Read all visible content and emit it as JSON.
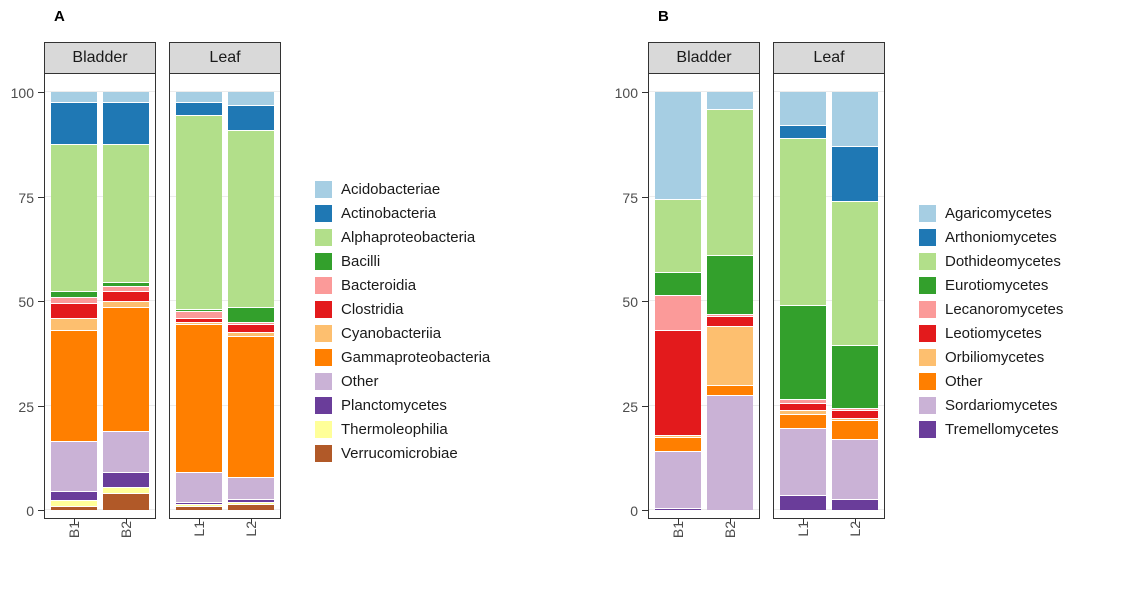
{
  "figure": {
    "background": "#FFFFFF"
  },
  "chart_data": [
    {
      "type": "bar",
      "stacked": true,
      "panel_label": "A",
      "facets": [
        "Bladder",
        "Leaf"
      ],
      "categories": [
        "B1",
        "B2",
        "L1",
        "L2"
      ],
      "category_facets": [
        "Bladder",
        "Bladder",
        "Leaf",
        "Leaf"
      ],
      "ylim": [
        0,
        100
      ],
      "yticks": [
        0,
        25,
        50,
        75,
        100
      ],
      "xlabel": "",
      "ylabel": "",
      "legend_position": "right",
      "strip_fill": "#D9D9D9",
      "grid": false,
      "series": [
        {
          "name": "Acidobacteriae",
          "color": "#A6CEE3",
          "values": [
            2.5,
            2.5,
            2.5,
            3
          ]
        },
        {
          "name": "Actinobacteria",
          "color": "#1F78B4",
          "values": [
            10,
            10,
            3,
            6
          ]
        },
        {
          "name": "Alphaproteobacteria",
          "color": "#B2DF8A",
          "values": [
            35,
            33,
            46.5,
            42.5
          ]
        },
        {
          "name": "Bacilli",
          "color": "#33A02C",
          "values": [
            1.5,
            1,
            0.5,
            3.5
          ]
        },
        {
          "name": "Bacteroidia",
          "color": "#FB9A99",
          "values": [
            1.5,
            1,
            1.5,
            0.5
          ]
        },
        {
          "name": "Clostridia",
          "color": "#E31A1C",
          "values": [
            3.5,
            2.5,
            1,
            2
          ]
        },
        {
          "name": "Cyanobacteriia",
          "color": "#FDBF6F",
          "values": [
            3,
            1.5,
            0.5,
            1
          ]
        },
        {
          "name": "Gammaproteobacteria",
          "color": "#FF7F00",
          "values": [
            26.5,
            29.5,
            35.5,
            33.5
          ]
        },
        {
          "name": "Other",
          "color": "#CAB2D6",
          "values": [
            12,
            10,
            7,
            5.5
          ]
        },
        {
          "name": "Planctomycetes",
          "color": "#6A3D9A",
          "values": [
            2,
            3.5,
            0.5,
            0.5
          ]
        },
        {
          "name": "Thermoleophilia",
          "color": "#FFFF99",
          "values": [
            1.5,
            1.5,
            0.5,
            0.5
          ]
        },
        {
          "name": "Verrucomicrobiae",
          "color": "#B15928",
          "values": [
            1,
            4,
            1,
            1.5
          ]
        }
      ]
    },
    {
      "type": "bar",
      "stacked": true,
      "panel_label": "B",
      "facets": [
        "Bladder",
        "Leaf"
      ],
      "categories": [
        "B1",
        "B2",
        "L1",
        "L2"
      ],
      "category_facets": [
        "Bladder",
        "Bladder",
        "Leaf",
        "Leaf"
      ],
      "ylim": [
        0,
        100
      ],
      "yticks": [
        0,
        25,
        50,
        75,
        100
      ],
      "xlabel": "",
      "ylabel": "",
      "legend_position": "right",
      "strip_fill": "#D9D9D9",
      "grid": false,
      "series": [
        {
          "name": "Agaricomycetes",
          "color": "#A6CEE3",
          "values": [
            25.5,
            4,
            8,
            13
          ]
        },
        {
          "name": "Arthoniomycetes",
          "color": "#1F78B4",
          "values": [
            0,
            0,
            3,
            13
          ]
        },
        {
          "name": "Dothideomycetes",
          "color": "#B2DF8A",
          "values": [
            17.5,
            35,
            40,
            34.5
          ]
        },
        {
          "name": "Eurotiomycetes",
          "color": "#33A02C",
          "values": [
            5.5,
            14,
            22.5,
            15
          ]
        },
        {
          "name": "Lecanoromycetes",
          "color": "#FB9A99",
          "values": [
            8.5,
            0.5,
            1,
            0.5
          ]
        },
        {
          "name": "Leotiomycetes",
          "color": "#E31A1C",
          "values": [
            25,
            2.5,
            1.5,
            2
          ]
        },
        {
          "name": "Orbiliomycetes",
          "color": "#FDBF6F",
          "values": [
            0.5,
            14,
            1,
            0.5
          ]
        },
        {
          "name": "Other",
          "color": "#FF7F00",
          "values": [
            3.5,
            2.5,
            3.5,
            4.5
          ]
        },
        {
          "name": "Sordariomycetes",
          "color": "#CAB2D6",
          "values": [
            13.5,
            27.5,
            16,
            14.5
          ]
        },
        {
          "name": "Tremellomycetes",
          "color": "#6A3D9A",
          "values": [
            0.5,
            0,
            3.5,
            2.5
          ]
        }
      ]
    }
  ]
}
